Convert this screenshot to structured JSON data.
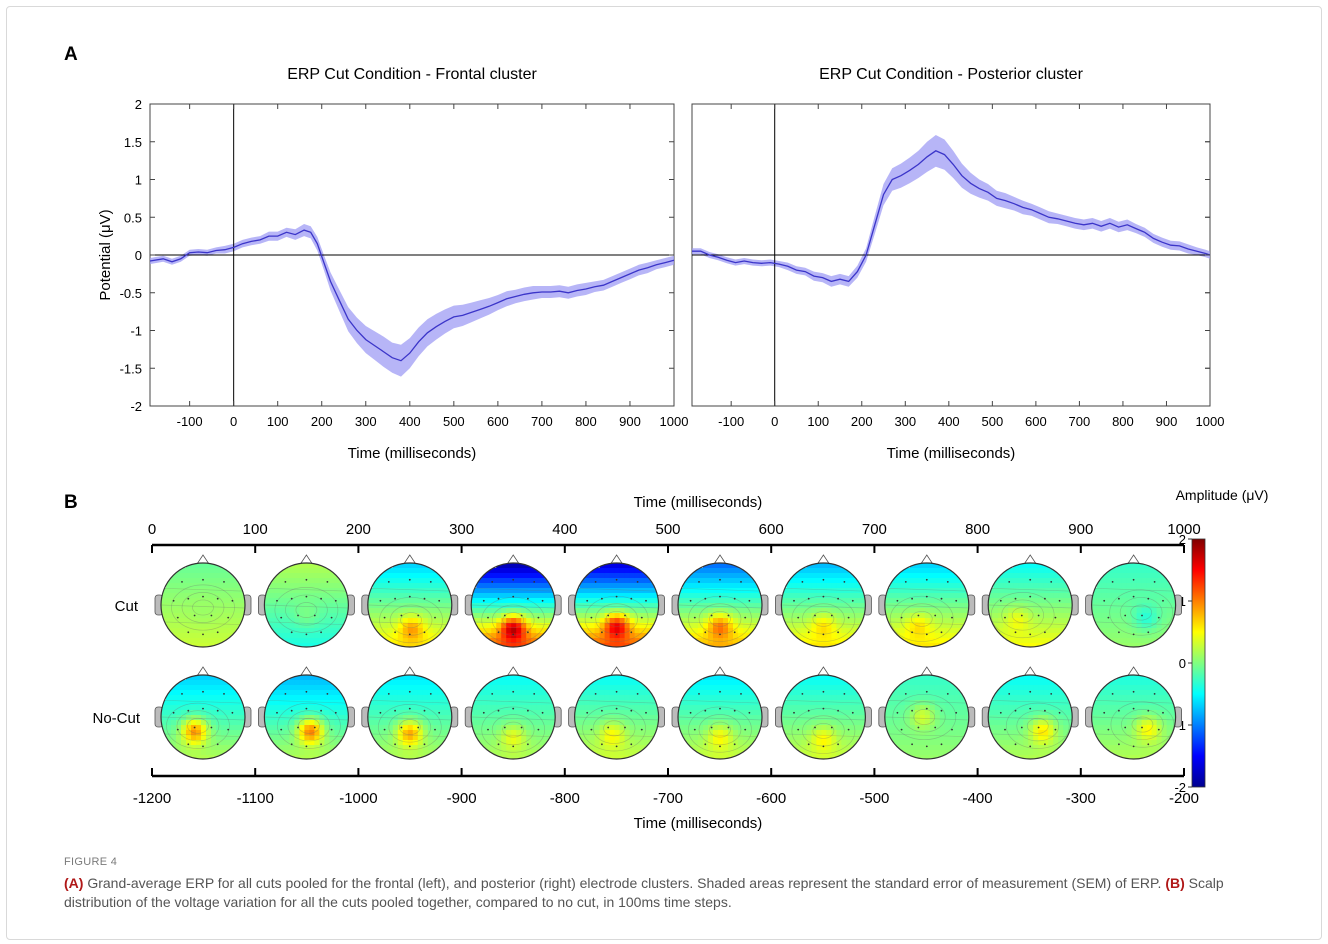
{
  "panel_a_letter": "A",
  "panel_b_letter": "B",
  "caption": {
    "label": "FIGURE 4",
    "a_tag": "(A)",
    "a_text": " Grand-average ERP for all cuts pooled for the frontal (left), and posterior (right) electrode clusters. Shaded areas represent the standard error of measurement (SEM) of ERP. ",
    "b_tag": "(B)",
    "b_text": " Scalp distribution of the voltage variation for all the cuts pooled together, compared to no cut, in 100ms time steps."
  },
  "chart_data": [
    {
      "type": "line",
      "title": "ERP Cut Condition - Frontal cluster",
      "xlabel": "Time (milliseconds)",
      "ylabel": "Potential (μV)",
      "xlim": [
        -190,
        1000
      ],
      "ylim": [
        -2,
        2
      ],
      "xticks": [
        -100,
        0,
        100,
        200,
        300,
        400,
        500,
        600,
        700,
        800,
        900,
        1000
      ],
      "yticks": [
        2,
        1.5,
        1,
        0.5,
        0,
        -0.5,
        -1,
        -1.5,
        -2
      ],
      "series": [
        {
          "x": [
            -190,
            -160,
            -140,
            -120,
            -100,
            -80,
            -60,
            -40,
            -20,
            0,
            20,
            40,
            60,
            80,
            100,
            120,
            140,
            160,
            175,
            190,
            205,
            220,
            240,
            260,
            280,
            300,
            320,
            340,
            360,
            380,
            400,
            420,
            440,
            460,
            480,
            500,
            520,
            540,
            560,
            580,
            600,
            620,
            640,
            660,
            680,
            700,
            720,
            740,
            760,
            780,
            800,
            820,
            840,
            860,
            880,
            900,
            920,
            940,
            960,
            980,
            1000
          ],
          "y": [
            -0.08,
            -0.05,
            -0.09,
            -0.05,
            0.03,
            0.04,
            0.03,
            0.06,
            0.07,
            0.1,
            0.15,
            0.18,
            0.2,
            0.25,
            0.25,
            0.3,
            0.27,
            0.33,
            0.3,
            0.15,
            -0.1,
            -0.35,
            -0.6,
            -0.85,
            -1.0,
            -1.12,
            -1.2,
            -1.28,
            -1.36,
            -1.4,
            -1.3,
            -1.15,
            -1.03,
            -0.95,
            -0.88,
            -0.82,
            -0.8,
            -0.76,
            -0.72,
            -0.68,
            -0.63,
            -0.58,
            -0.55,
            -0.52,
            -0.5,
            -0.49,
            -0.49,
            -0.48,
            -0.5,
            -0.47,
            -0.45,
            -0.42,
            -0.4,
            -0.35,
            -0.3,
            -0.25,
            -0.2,
            -0.17,
            -0.13,
            -0.1,
            -0.07
          ],
          "sem": [
            0.04,
            0.04,
            0.04,
            0.04,
            0.04,
            0.04,
            0.04,
            0.04,
            0.05,
            0.05,
            0.05,
            0.05,
            0.05,
            0.06,
            0.06,
            0.06,
            0.07,
            0.08,
            0.08,
            0.09,
            0.1,
            0.12,
            0.14,
            0.16,
            0.17,
            0.18,
            0.19,
            0.2,
            0.2,
            0.21,
            0.2,
            0.19,
            0.18,
            0.17,
            0.16,
            0.15,
            0.14,
            0.13,
            0.12,
            0.11,
            0.1,
            0.1,
            0.09,
            0.09,
            0.09,
            0.08,
            0.08,
            0.08,
            0.08,
            0.08,
            0.08,
            0.07,
            0.07,
            0.07,
            0.07,
            0.07,
            0.07,
            0.07,
            0.06,
            0.06,
            0.06
          ]
        }
      ]
    },
    {
      "type": "line",
      "title": "ERP Cut Condition - Posterior cluster",
      "xlabel": "Time (milliseconds)",
      "ylabel": "",
      "xlim": [
        -190,
        1000
      ],
      "ylim": [
        -2,
        2
      ],
      "xticks": [
        -100,
        0,
        100,
        200,
        300,
        400,
        500,
        600,
        700,
        800,
        900,
        1000
      ],
      "series": [
        {
          "x": [
            -190,
            -170,
            -150,
            -130,
            -110,
            -90,
            -70,
            -50,
            -30,
            -10,
            10,
            30,
            50,
            70,
            90,
            110,
            130,
            150,
            170,
            190,
            210,
            230,
            250,
            270,
            290,
            310,
            330,
            350,
            370,
            390,
            410,
            430,
            450,
            470,
            490,
            510,
            530,
            550,
            570,
            590,
            610,
            630,
            650,
            670,
            690,
            710,
            730,
            750,
            770,
            790,
            810,
            830,
            850,
            870,
            890,
            910,
            930,
            950,
            970,
            990,
            1000
          ],
          "y": [
            0.05,
            0.05,
            0.0,
            -0.03,
            -0.07,
            -0.1,
            -0.08,
            -0.1,
            -0.11,
            -0.1,
            -0.12,
            -0.15,
            -0.2,
            -0.22,
            -0.28,
            -0.3,
            -0.35,
            -0.32,
            -0.35,
            -0.22,
            0.0,
            0.4,
            0.8,
            1.0,
            1.05,
            1.12,
            1.2,
            1.3,
            1.38,
            1.33,
            1.2,
            1.05,
            0.95,
            0.88,
            0.83,
            0.75,
            0.72,
            0.68,
            0.63,
            0.6,
            0.55,
            0.5,
            0.48,
            0.45,
            0.42,
            0.4,
            0.42,
            0.38,
            0.42,
            0.37,
            0.4,
            0.35,
            0.3,
            0.22,
            0.17,
            0.13,
            0.12,
            0.08,
            0.05,
            0.02,
            0.0
          ],
          "sem": [
            0.04,
            0.04,
            0.04,
            0.04,
            0.04,
            0.04,
            0.04,
            0.04,
            0.04,
            0.04,
            0.04,
            0.05,
            0.05,
            0.05,
            0.06,
            0.06,
            0.07,
            0.07,
            0.07,
            0.08,
            0.09,
            0.12,
            0.14,
            0.15,
            0.16,
            0.17,
            0.18,
            0.2,
            0.21,
            0.2,
            0.18,
            0.16,
            0.14,
            0.12,
            0.11,
            0.1,
            0.1,
            0.09,
            0.09,
            0.08,
            0.08,
            0.08,
            0.07,
            0.07,
            0.07,
            0.07,
            0.07,
            0.07,
            0.07,
            0.07,
            0.07,
            0.06,
            0.06,
            0.06,
            0.06,
            0.06,
            0.06,
            0.06,
            0.05,
            0.05,
            0.05
          ]
        }
      ]
    },
    {
      "type": "heatmap",
      "subtype": "scalp topographies",
      "top_axis_label": "Time (milliseconds)",
      "top_ticks": [
        0,
        100,
        200,
        300,
        400,
        500,
        600,
        700,
        800,
        900,
        1000
      ],
      "bottom_axis_label": "Time (milliseconds)",
      "bottom_ticks": [
        -1200,
        -1100,
        -1000,
        -900,
        -800,
        -700,
        -600,
        -500,
        -400,
        -300,
        -200
      ],
      "rows": [
        "Cut",
        "No-Cut"
      ],
      "colorbar": {
        "title": "Amplitude (μV)",
        "min": -2,
        "max": 2,
        "ticks": [
          2,
          1,
          0,
          -1,
          -2
        ]
      },
      "maps": [
        [
          {
            "front": -0.1,
            "back": 0.3,
            "hot": 0.1,
            "hx": 0.0,
            "hy": 0.1
          },
          {
            "front": 0.2,
            "back": -0.4,
            "hot": 0.0,
            "hx": 0.0,
            "hy": 0.2
          },
          {
            "front": -0.7,
            "back": 0.6,
            "hot": 1.0,
            "hx": 0.05,
            "hy": 0.6
          },
          {
            "front": -1.9,
            "back": 1.2,
            "hot": 2.0,
            "hx": 0.0,
            "hy": 0.6
          },
          {
            "front": -1.7,
            "back": 1.2,
            "hot": 1.8,
            "hx": 0.0,
            "hy": 0.55
          },
          {
            "front": -1.1,
            "back": 0.8,
            "hot": 1.2,
            "hx": 0.0,
            "hy": 0.55
          },
          {
            "front": -0.8,
            "back": 0.6,
            "hot": 0.7,
            "hx": 0.0,
            "hy": 0.55
          },
          {
            "front": -0.7,
            "back": 0.6,
            "hot": 0.7,
            "hx": -0.2,
            "hy": 0.55
          },
          {
            "front": -0.5,
            "back": 0.5,
            "hot": 0.5,
            "hx": -0.3,
            "hy": 0.4
          },
          {
            "front": -0.3,
            "back": 0.1,
            "hot": -0.4,
            "hx": 0.3,
            "hy": 0.3
          }
        ],
        [
          {
            "front": -0.7,
            "back": 0.2,
            "hot": 1.1,
            "hx": -0.2,
            "hy": 0.35
          },
          {
            "front": -0.8,
            "back": 0.2,
            "hot": 1.2,
            "hx": 0.1,
            "hy": 0.35
          },
          {
            "front": -0.6,
            "back": 0.2,
            "hot": 1.0,
            "hx": 0.0,
            "hy": 0.4
          },
          {
            "front": -0.5,
            "back": 0.2,
            "hot": 0.5,
            "hx": 0.0,
            "hy": 0.5
          },
          {
            "front": -0.5,
            "back": 0.3,
            "hot": 0.6,
            "hx": -0.1,
            "hy": 0.45
          },
          {
            "front": -0.6,
            "back": 0.3,
            "hot": 0.6,
            "hx": 0.0,
            "hy": 0.5
          },
          {
            "front": -0.5,
            "back": 0.3,
            "hot": 0.6,
            "hx": 0.0,
            "hy": 0.55
          },
          {
            "front": -0.3,
            "back": 0.1,
            "hot": 0.4,
            "hx": -0.1,
            "hy": 0.0
          },
          {
            "front": -0.5,
            "back": 0.2,
            "hot": 0.7,
            "hx": 0.3,
            "hy": 0.35
          },
          {
            "front": -0.4,
            "back": 0.2,
            "hot": 0.6,
            "hx": 0.35,
            "hy": 0.3
          }
        ]
      ]
    }
  ]
}
